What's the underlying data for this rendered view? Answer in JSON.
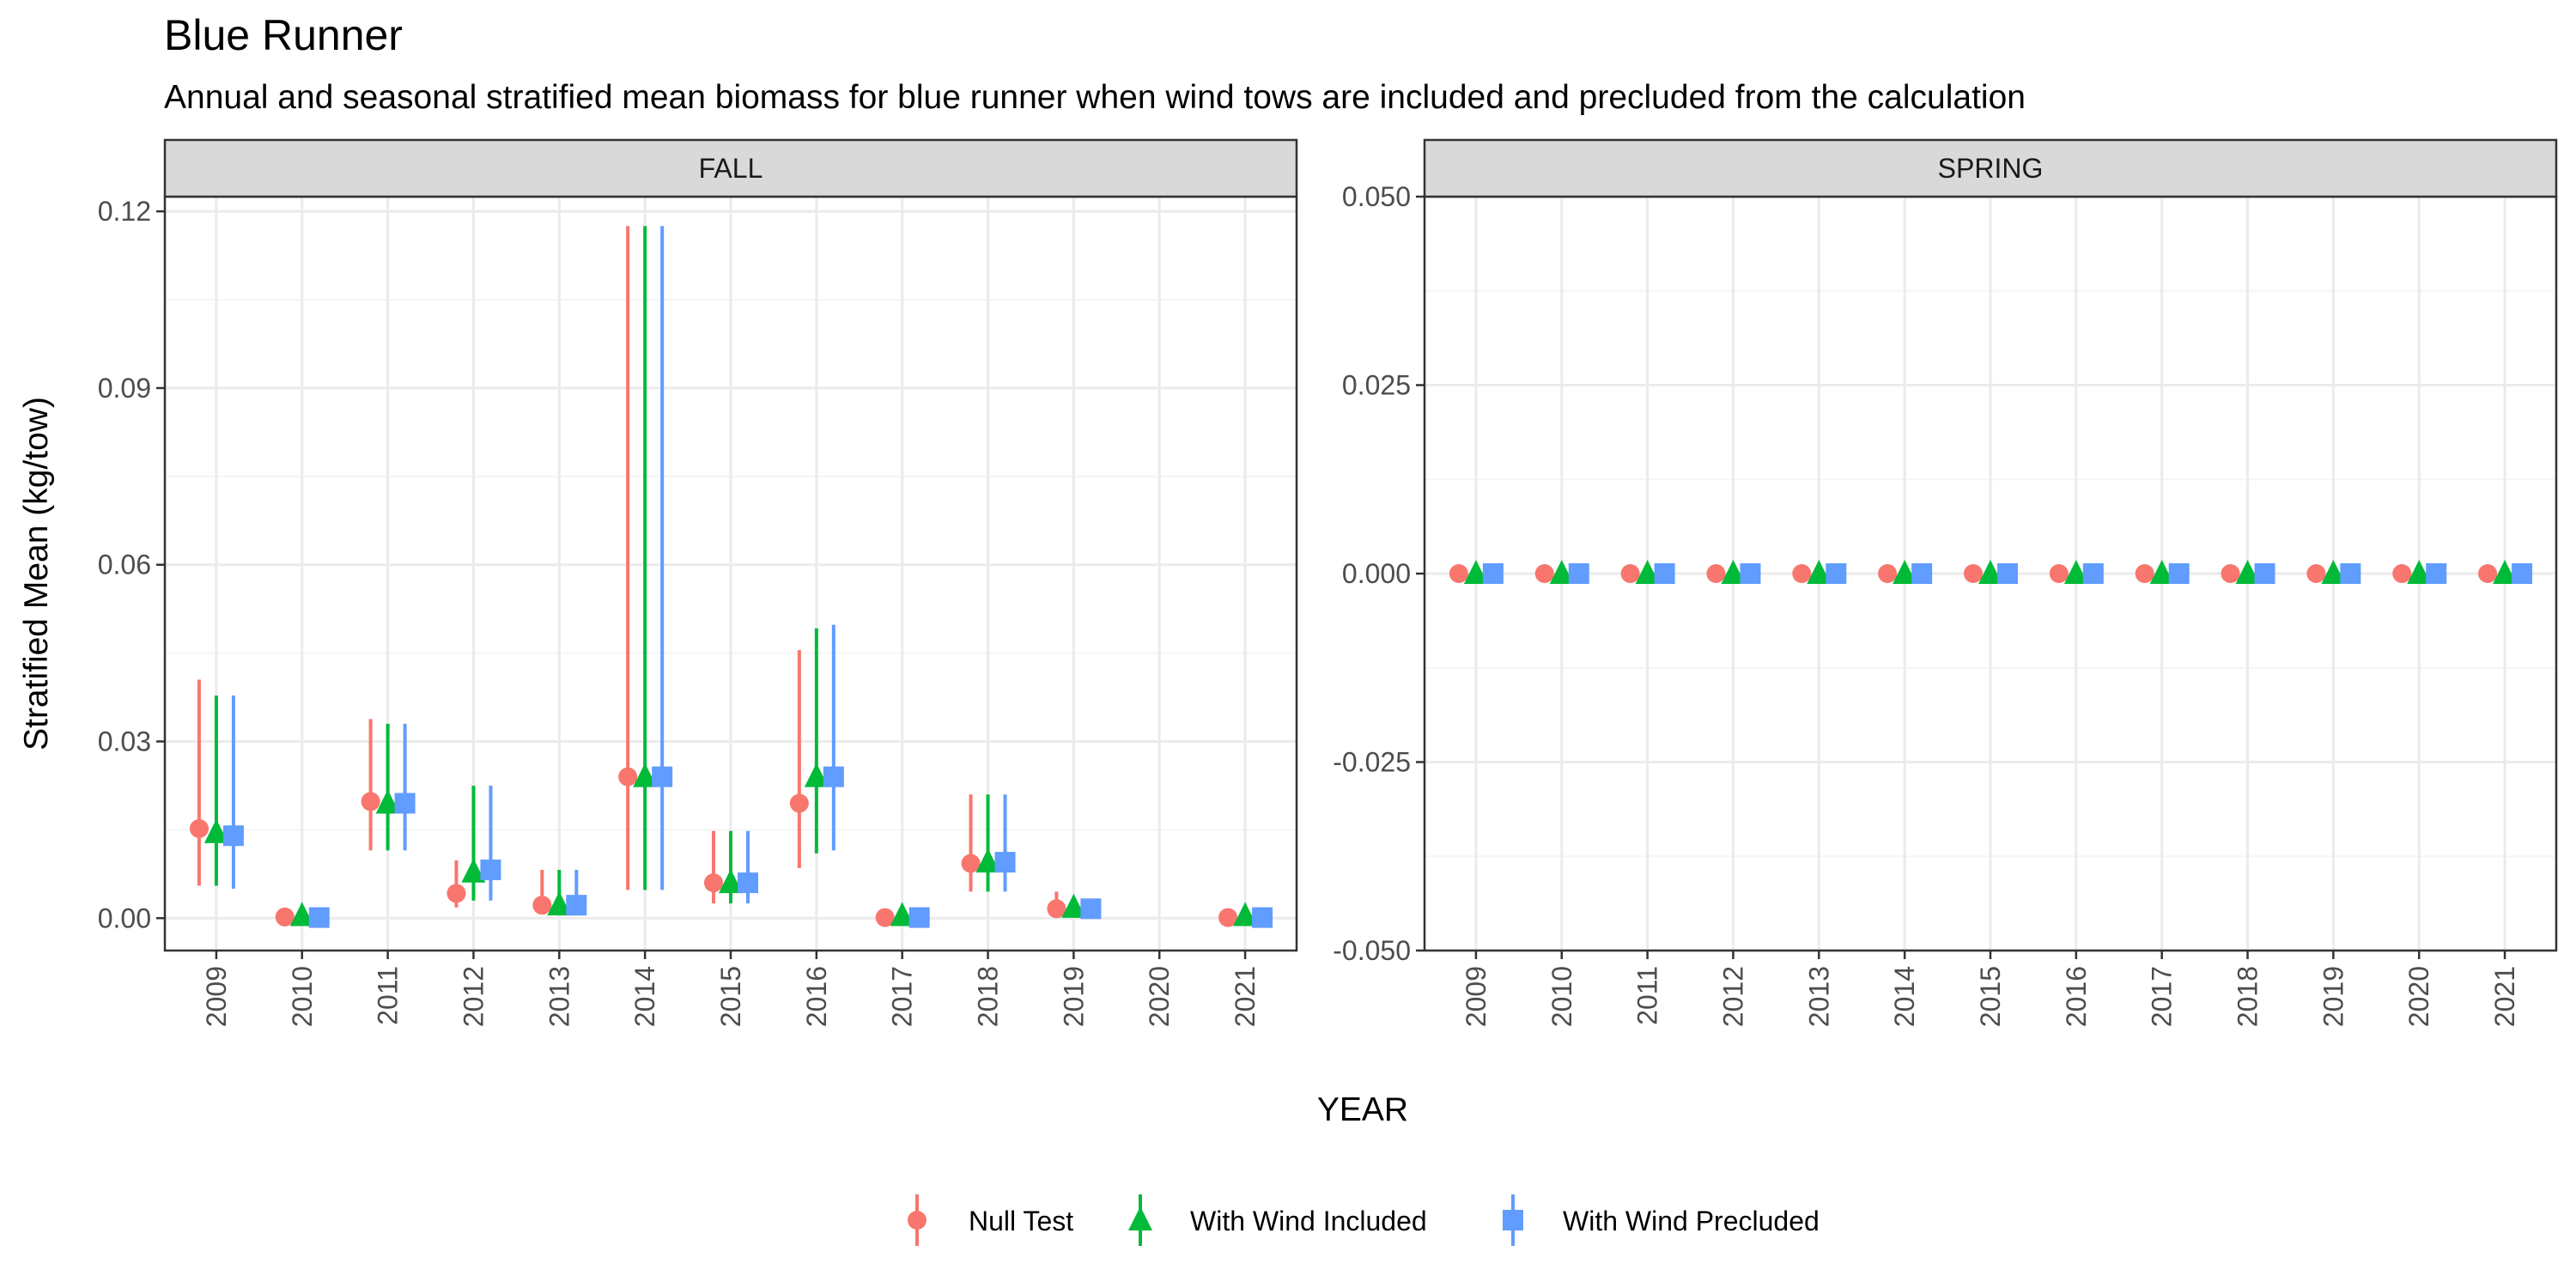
{
  "title": "Blue Runner",
  "subtitle": "Annual and seasonal stratified mean biomass for blue runner when wind tows are included and precluded from the calculation",
  "colors": {
    "null_test": "#F8766D",
    "with_wind_included": "#00BA38",
    "with_wind_precluded": "#619CFF",
    "panel_strip": "#D9D9D9",
    "grid_major": "#EBEBEB",
    "grid_minor": "#F5F5F5",
    "border": "#333333"
  },
  "chart_data": {
    "type": "scatter",
    "subtype": "point-range (mean with error bars), faceted by season",
    "xlabel": "YEAR",
    "ylabel": "Stratified Mean (kg/tow)",
    "categories": [
      "2009",
      "2010",
      "2011",
      "2012",
      "2013",
      "2014",
      "2015",
      "2016",
      "2017",
      "2018",
      "2019",
      "2020",
      "2021"
    ],
    "legend": {
      "position": "bottom",
      "entries": [
        {
          "label": "Null Test",
          "marker": "circle",
          "color": "#F8766D"
        },
        {
          "label": "With Wind Included",
          "marker": "triangle",
          "color": "#00BA38"
        },
        {
          "label": "With Wind Precluded",
          "marker": "square",
          "color": "#619CFF"
        }
      ]
    },
    "grid": true,
    "panels": [
      {
        "strip_label": "FALL",
        "ylim": [
          -0.0055,
          0.1225
        ],
        "yticks": [
          0.0,
          0.03,
          0.06,
          0.09,
          0.12
        ],
        "ytick_labels": [
          "0.00",
          "0.03",
          "0.06",
          "0.09",
          "0.12"
        ],
        "series": [
          {
            "name": "Null Test",
            "points": [
              {
                "year": "2009",
                "mean": 0.0152,
                "low": 0.0055,
                "high": 0.0405
              },
              {
                "year": "2010",
                "mean": 0.0002,
                "low": 0.0,
                "high": 0.0004
              },
              {
                "year": "2011",
                "mean": 0.0198,
                "low": 0.0115,
                "high": 0.0338
              },
              {
                "year": "2012",
                "mean": 0.0042,
                "low": 0.0018,
                "high": 0.0098
              },
              {
                "year": "2013",
                "mean": 0.0022,
                "low": 0.0008,
                "high": 0.0082
              },
              {
                "year": "2014",
                "mean": 0.024,
                "low": 0.0048,
                "high": 0.1175
              },
              {
                "year": "2015",
                "mean": 0.006,
                "low": 0.0025,
                "high": 0.0148
              },
              {
                "year": "2016",
                "mean": 0.0195,
                "low": 0.0085,
                "high": 0.0455
              },
              {
                "year": "2017",
                "mean": 0.0001,
                "low": 0.0,
                "high": 0.0003
              },
              {
                "year": "2018",
                "mean": 0.0093,
                "low": 0.0045,
                "high": 0.021
              },
              {
                "year": "2019",
                "mean": 0.0016,
                "low": 0.0006,
                "high": 0.0045
              },
              {
                "year": "2021",
                "mean": 0.0001,
                "low": 0.0,
                "high": 0.0003
              }
            ]
          },
          {
            "name": "With Wind Included",
            "points": [
              {
                "year": "2009",
                "mean": 0.0145,
                "low": 0.0055,
                "high": 0.0378
              },
              {
                "year": "2010",
                "mean": 0.0004,
                "low": 0.0,
                "high": 0.0008
              },
              {
                "year": "2011",
                "mean": 0.0195,
                "low": 0.0115,
                "high": 0.033
              },
              {
                "year": "2012",
                "mean": 0.0078,
                "low": 0.003,
                "high": 0.0225
              },
              {
                "year": "2013",
                "mean": 0.0022,
                "low": 0.0008,
                "high": 0.0082
              },
              {
                "year": "2014",
                "mean": 0.024,
                "low": 0.0048,
                "high": 0.1175
              },
              {
                "year": "2015",
                "mean": 0.006,
                "low": 0.0025,
                "high": 0.0148
              },
              {
                "year": "2016",
                "mean": 0.024,
                "low": 0.011,
                "high": 0.0492
              },
              {
                "year": "2017",
                "mean": 0.0004,
                "low": 0.0,
                "high": 0.0008
              },
              {
                "year": "2018",
                "mean": 0.0095,
                "low": 0.0045,
                "high": 0.021
              },
              {
                "year": "2019",
                "mean": 0.0018,
                "low": 0.0008,
                "high": 0.003
              },
              {
                "year": "2021",
                "mean": 0.0004,
                "low": 0.0,
                "high": 0.0008
              }
            ]
          },
          {
            "name": "With Wind Precluded",
            "points": [
              {
                "year": "2009",
                "mean": 0.014,
                "low": 0.005,
                "high": 0.0378
              },
              {
                "year": "2010",
                "mean": 0.0001,
                "low": 0.0,
                "high": 0.0003
              },
              {
                "year": "2011",
                "mean": 0.0195,
                "low": 0.0115,
                "high": 0.033
              },
              {
                "year": "2012",
                "mean": 0.0082,
                "low": 0.003,
                "high": 0.0225
              },
              {
                "year": "2013",
                "mean": 0.0022,
                "low": 0.0008,
                "high": 0.0082
              },
              {
                "year": "2014",
                "mean": 0.024,
                "low": 0.0048,
                "high": 0.1175
              },
              {
                "year": "2015",
                "mean": 0.006,
                "low": 0.0025,
                "high": 0.0148
              },
              {
                "year": "2016",
                "mean": 0.024,
                "low": 0.0115,
                "high": 0.0498
              },
              {
                "year": "2017",
                "mean": 0.0001,
                "low": 0.0,
                "high": 0.0003
              },
              {
                "year": "2018",
                "mean": 0.0095,
                "low": 0.0045,
                "high": 0.021
              },
              {
                "year": "2019",
                "mean": 0.0016,
                "low": 0.0008,
                "high": 0.003
              },
              {
                "year": "2021",
                "mean": 0.0001,
                "low": 0.0,
                "high": 0.0003
              }
            ]
          }
        ]
      },
      {
        "strip_label": "SPRING",
        "ylim": [
          -0.05,
          0.05
        ],
        "yticks": [
          -0.05,
          -0.025,
          0.0,
          0.025,
          0.05
        ],
        "ytick_labels": [
          "-0.050",
          "-0.025",
          "0.000",
          "0.025",
          "0.050"
        ],
        "series": [
          {
            "name": "Null Test",
            "points": [
              {
                "year": "2009",
                "mean": 0.0,
                "low": 0.0,
                "high": 0.0
              },
              {
                "year": "2010",
                "mean": 0.0,
                "low": 0.0,
                "high": 0.0
              },
              {
                "year": "2011",
                "mean": 0.0,
                "low": 0.0,
                "high": 0.0
              },
              {
                "year": "2012",
                "mean": 0.0,
                "low": 0.0,
                "high": 0.0
              },
              {
                "year": "2013",
                "mean": 0.0,
                "low": 0.0,
                "high": 0.0
              },
              {
                "year": "2014",
                "mean": 0.0,
                "low": 0.0,
                "high": 0.0
              },
              {
                "year": "2015",
                "mean": 0.0,
                "low": 0.0,
                "high": 0.0
              },
              {
                "year": "2016",
                "mean": 0.0,
                "low": 0.0,
                "high": 0.0
              },
              {
                "year": "2017",
                "mean": 0.0,
                "low": 0.0,
                "high": 0.0
              },
              {
                "year": "2018",
                "mean": 0.0,
                "low": 0.0,
                "high": 0.0
              },
              {
                "year": "2019",
                "mean": 0.0,
                "low": 0.0,
                "high": 0.0
              },
              {
                "year": "2020",
                "mean": 0.0,
                "low": 0.0,
                "high": 0.0
              },
              {
                "year": "2021",
                "mean": 0.0,
                "low": 0.0,
                "high": 0.0
              }
            ]
          },
          {
            "name": "With Wind Included",
            "points": [
              {
                "year": "2009",
                "mean": 0.0,
                "low": 0.0,
                "high": 0.0
              },
              {
                "year": "2010",
                "mean": 0.0,
                "low": 0.0,
                "high": 0.0
              },
              {
                "year": "2011",
                "mean": 0.0,
                "low": 0.0,
                "high": 0.0
              },
              {
                "year": "2012",
                "mean": 0.0,
                "low": 0.0,
                "high": 0.0
              },
              {
                "year": "2013",
                "mean": 0.0,
                "low": 0.0,
                "high": 0.0
              },
              {
                "year": "2014",
                "mean": 0.0,
                "low": 0.0,
                "high": 0.0
              },
              {
                "year": "2015",
                "mean": 0.0,
                "low": 0.0,
                "high": 0.0
              },
              {
                "year": "2016",
                "mean": 0.0,
                "low": 0.0,
                "high": 0.0
              },
              {
                "year": "2017",
                "mean": 0.0,
                "low": 0.0,
                "high": 0.0
              },
              {
                "year": "2018",
                "mean": 0.0,
                "low": 0.0,
                "high": 0.0
              },
              {
                "year": "2019",
                "mean": 0.0,
                "low": 0.0,
                "high": 0.0
              },
              {
                "year": "2020",
                "mean": 0.0,
                "low": 0.0,
                "high": 0.0
              },
              {
                "year": "2021",
                "mean": 0.0,
                "low": 0.0,
                "high": 0.0
              }
            ]
          },
          {
            "name": "With Wind Precluded",
            "points": [
              {
                "year": "2009",
                "mean": 0.0,
                "low": 0.0,
                "high": 0.0
              },
              {
                "year": "2010",
                "mean": 0.0,
                "low": 0.0,
                "high": 0.0
              },
              {
                "year": "2011",
                "mean": 0.0,
                "low": 0.0,
                "high": 0.0
              },
              {
                "year": "2012",
                "mean": 0.0,
                "low": 0.0,
                "high": 0.0
              },
              {
                "year": "2013",
                "mean": 0.0,
                "low": 0.0,
                "high": 0.0
              },
              {
                "year": "2014",
                "mean": 0.0,
                "low": 0.0,
                "high": 0.0
              },
              {
                "year": "2015",
                "mean": 0.0,
                "low": 0.0,
                "high": 0.0
              },
              {
                "year": "2016",
                "mean": 0.0,
                "low": 0.0,
                "high": 0.0
              },
              {
                "year": "2017",
                "mean": 0.0,
                "low": 0.0,
                "high": 0.0
              },
              {
                "year": "2018",
                "mean": 0.0,
                "low": 0.0,
                "high": 0.0
              },
              {
                "year": "2019",
                "mean": 0.0,
                "low": 0.0,
                "high": 0.0
              },
              {
                "year": "2020",
                "mean": 0.0,
                "low": 0.0,
                "high": 0.0
              },
              {
                "year": "2021",
                "mean": 0.0,
                "low": 0.0,
                "high": 0.0
              }
            ]
          }
        ]
      }
    ]
  }
}
